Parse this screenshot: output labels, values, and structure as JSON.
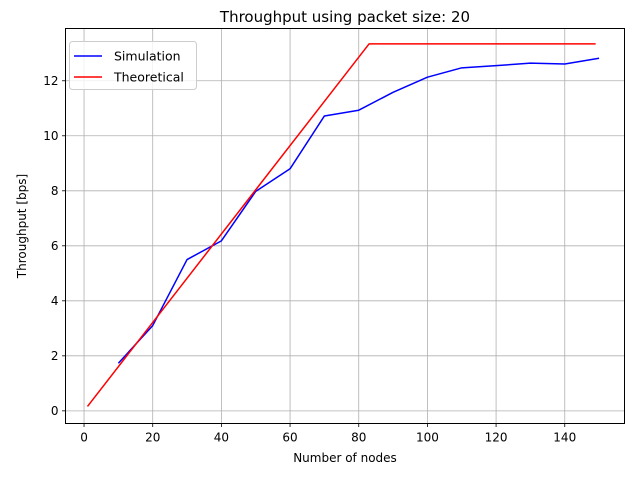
{
  "chart_data": {
    "type": "line",
    "title": "Throughput using packet size: 20",
    "xlabel": "Number of nodes",
    "ylabel": "Throughput [bps]",
    "xlim": [
      -5.4,
      157.4
    ],
    "ylim": [
      -0.46,
      13.9
    ],
    "xticks": [
      0,
      20,
      40,
      60,
      80,
      100,
      120,
      140
    ],
    "yticks": [
      0,
      2,
      4,
      6,
      8,
      10,
      12
    ],
    "grid": true,
    "legend_position": "upper left",
    "series": [
      {
        "name": "Simulation",
        "color": "#0000ff",
        "x": [
          10,
          20,
          30,
          40,
          50,
          60,
          70,
          80,
          90,
          100,
          110,
          120,
          130,
          140,
          150
        ],
        "y": [
          1.73,
          3.1,
          5.5,
          6.18,
          7.98,
          8.8,
          10.72,
          10.93,
          11.58,
          12.13,
          12.47,
          12.55,
          12.64,
          12.61,
          12.82
        ]
      },
      {
        "name": "Theoretical",
        "color": "#ff0000",
        "x": [
          1,
          83,
          84,
          90,
          100,
          110,
          120,
          130,
          140,
          149
        ],
        "y": [
          0.16,
          13.34,
          13.34,
          13.34,
          13.34,
          13.34,
          13.34,
          13.34,
          13.34,
          13.34
        ]
      }
    ]
  }
}
